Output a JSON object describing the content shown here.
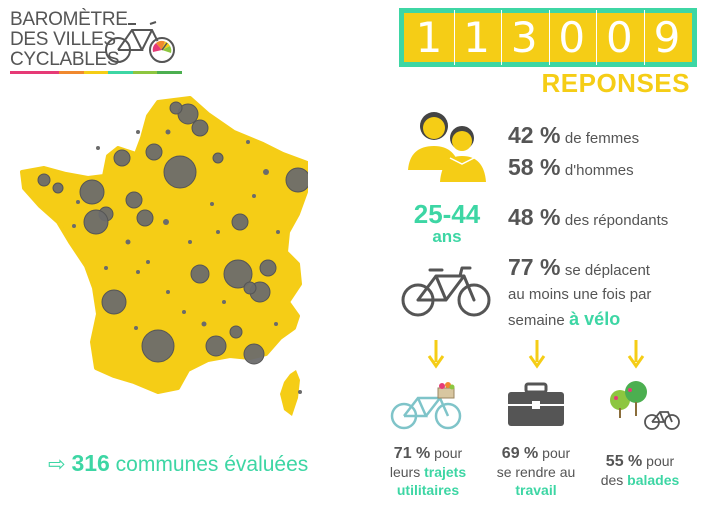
{
  "logo": {
    "line1": "BAROMÈTRE",
    "line2": "DES VILLES",
    "line3": "CYCLABLES",
    "bar_colors": [
      "#e63a76",
      "#e63a76",
      "#f0892f",
      "#f5cd16",
      "#3dd6a4",
      "#8dc63f",
      "#4caf50"
    ]
  },
  "counter": {
    "digits": [
      "1",
      "1",
      "3",
      "0",
      "0",
      "9"
    ],
    "label": "REPONSES",
    "colors": {
      "border": "#3dd6a4",
      "fill": "#f5cd16"
    }
  },
  "gender": {
    "women_pct": "42 %",
    "women_label": "de femmes",
    "men_pct": "58 %",
    "men_label": "d'hommes"
  },
  "age": {
    "range": "25-44",
    "unit": "ans",
    "pct": "48 %",
    "label": "des répondants"
  },
  "bike_weekly": {
    "pct": "77 %",
    "line1": "se déplacent",
    "line2": "au moins une fois par",
    "line3_prefix": "semaine",
    "line3_emph": "à vélo"
  },
  "usage": [
    {
      "pct": "71 %",
      "l1": "pour",
      "l2": "leurs",
      "l2_emph": "trajets",
      "l3_emph": "utilitaires",
      "icon": "bicycle-basket-icon"
    },
    {
      "pct": "69 %",
      "l1": "pour",
      "l2": "se rendre au",
      "l3_emph": "travail",
      "icon": "briefcase-icon"
    },
    {
      "pct": "55 %",
      "l1": "pour",
      "l2": "des",
      "l2_emph": "balades",
      "icon": "trees-bike-icon"
    }
  ],
  "communes": {
    "arrow": "⇨",
    "count": "316",
    "label": "communes évaluées"
  },
  "colors": {
    "yellow": "#f5cd16",
    "teal": "#3dd6a4",
    "text": "#555555",
    "bubble": "#6b6b6b"
  }
}
